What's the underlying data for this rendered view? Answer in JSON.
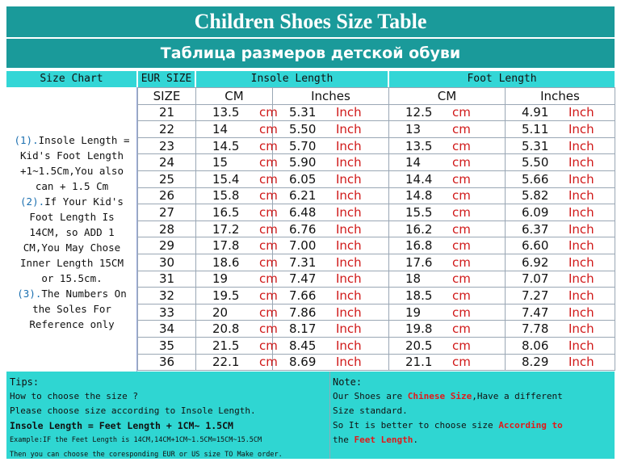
{
  "title_en": "Children Shoes Size Table",
  "title_ru": "Таблица размеров детской обуви",
  "headers": {
    "size_chart": "Size Chart",
    "eur_size": "EUR SIZE",
    "insole_length": "Insole Length",
    "foot_length": "Foot Length",
    "size": "SIZE",
    "cm": "CM",
    "inches": "Inches"
  },
  "units": {
    "cm": "cm",
    "inch": "Inch"
  },
  "left_notes": [
    {
      "num": "(1).",
      "text": "Insole Length ="
    },
    {
      "num": "",
      "text": "Kid's Foot Length"
    },
    {
      "num": "",
      "text": "+1~1.5Cm,You also"
    },
    {
      "num": "",
      "text": "can + 1.5 Cm"
    },
    {
      "num": "(2).",
      "text": "If Your Kid's"
    },
    {
      "num": "",
      "text": "Foot Length Is"
    },
    {
      "num": "",
      "text": "14CM,  so ADD 1"
    },
    {
      "num": "",
      "text": "CM,You May Chose"
    },
    {
      "num": "",
      "text": "Inner Length 15CM"
    },
    {
      "num": "",
      "text": "or 15.5cm."
    },
    {
      "num": "(3).",
      "text": "The Numbers On"
    },
    {
      "num": "",
      "text": "the Soles For"
    },
    {
      "num": "",
      "text": "Reference only"
    }
  ],
  "rows": [
    {
      "size": "21",
      "insole_cm": "13.5",
      "insole_in": "5.31",
      "foot_cm": "12.5",
      "foot_in": "4.91"
    },
    {
      "size": "22",
      "insole_cm": "14",
      "insole_in": "5.50",
      "foot_cm": "13",
      "foot_in": "5.11"
    },
    {
      "size": "23",
      "insole_cm": "14.5",
      "insole_in": "5.70",
      "foot_cm": "13.5",
      "foot_in": "5.31"
    },
    {
      "size": "24",
      "insole_cm": "15",
      "insole_in": "5.90",
      "foot_cm": "14",
      "foot_in": "5.50"
    },
    {
      "size": "25",
      "insole_cm": "15.4",
      "insole_in": "6.05",
      "foot_cm": "14.4",
      "foot_in": "5.66"
    },
    {
      "size": "26",
      "insole_cm": "15.8",
      "insole_in": "6.21",
      "foot_cm": "14.8",
      "foot_in": "5.82"
    },
    {
      "size": "27",
      "insole_cm": "16.5",
      "insole_in": "6.48",
      "foot_cm": "15.5",
      "foot_in": "6.09"
    },
    {
      "size": "28",
      "insole_cm": "17.2",
      "insole_in": "6.76",
      "foot_cm": "16.2",
      "foot_in": "6.37"
    },
    {
      "size": "29",
      "insole_cm": "17.8",
      "insole_in": "7.00",
      "foot_cm": "16.8",
      "foot_in": "6.60"
    },
    {
      "size": "30",
      "insole_cm": "18.6",
      "insole_in": "7.31",
      "foot_cm": "17.6",
      "foot_in": "6.92"
    },
    {
      "size": "31",
      "insole_cm": "19",
      "insole_in": "7.47",
      "foot_cm": "18",
      "foot_in": "7.07"
    },
    {
      "size": "32",
      "insole_cm": "19.5",
      "insole_in": "7.66",
      "foot_cm": "18.5",
      "foot_in": "7.27"
    },
    {
      "size": "33",
      "insole_cm": "20",
      "insole_in": "7.86",
      "foot_cm": "19",
      "foot_in": "7.47"
    },
    {
      "size": "34",
      "insole_cm": "20.8",
      "insole_in": "8.17",
      "foot_cm": "19.8",
      "foot_in": "7.78"
    },
    {
      "size": "35",
      "insole_cm": "21.5",
      "insole_in": "8.45",
      "foot_cm": "20.5",
      "foot_in": "8.06"
    },
    {
      "size": "36",
      "insole_cm": "22.1",
      "insole_in": "8.69",
      "foot_cm": "21.1",
      "foot_in": "8.29"
    }
  ],
  "tips": {
    "label": "Tips:",
    "line1": "How to choose the size ?",
    "line2": "Please choose size according to Insole Length.",
    "line3": "Insole Length = Feet Length + 1CM~ 1.5CM",
    "line4": "Example:IF the Feet Length is 14CM,14CM+1CM~1.5CM=15CM~15.5CM",
    "line5": "Then you can choose the coresponding EUR or US size TO Make order."
  },
  "note": {
    "label": "Note:",
    "l1_pre": "Our Shoes are ",
    "l1_red": "Chinese Size",
    "l1_post": ",Have a different",
    "l2": "Size standard.",
    "l3_pre": "So It is better to choose size ",
    "l3_red": "According to",
    "l4_pre": "the ",
    "l4_red": "Feet Length",
    "l4_post": "."
  },
  "colors": {
    "title_bg": "#1a9a9a",
    "header_bg": "#33d6d6",
    "bottom_bg": "#2fd6d2",
    "unit_red": "#d01818"
  }
}
